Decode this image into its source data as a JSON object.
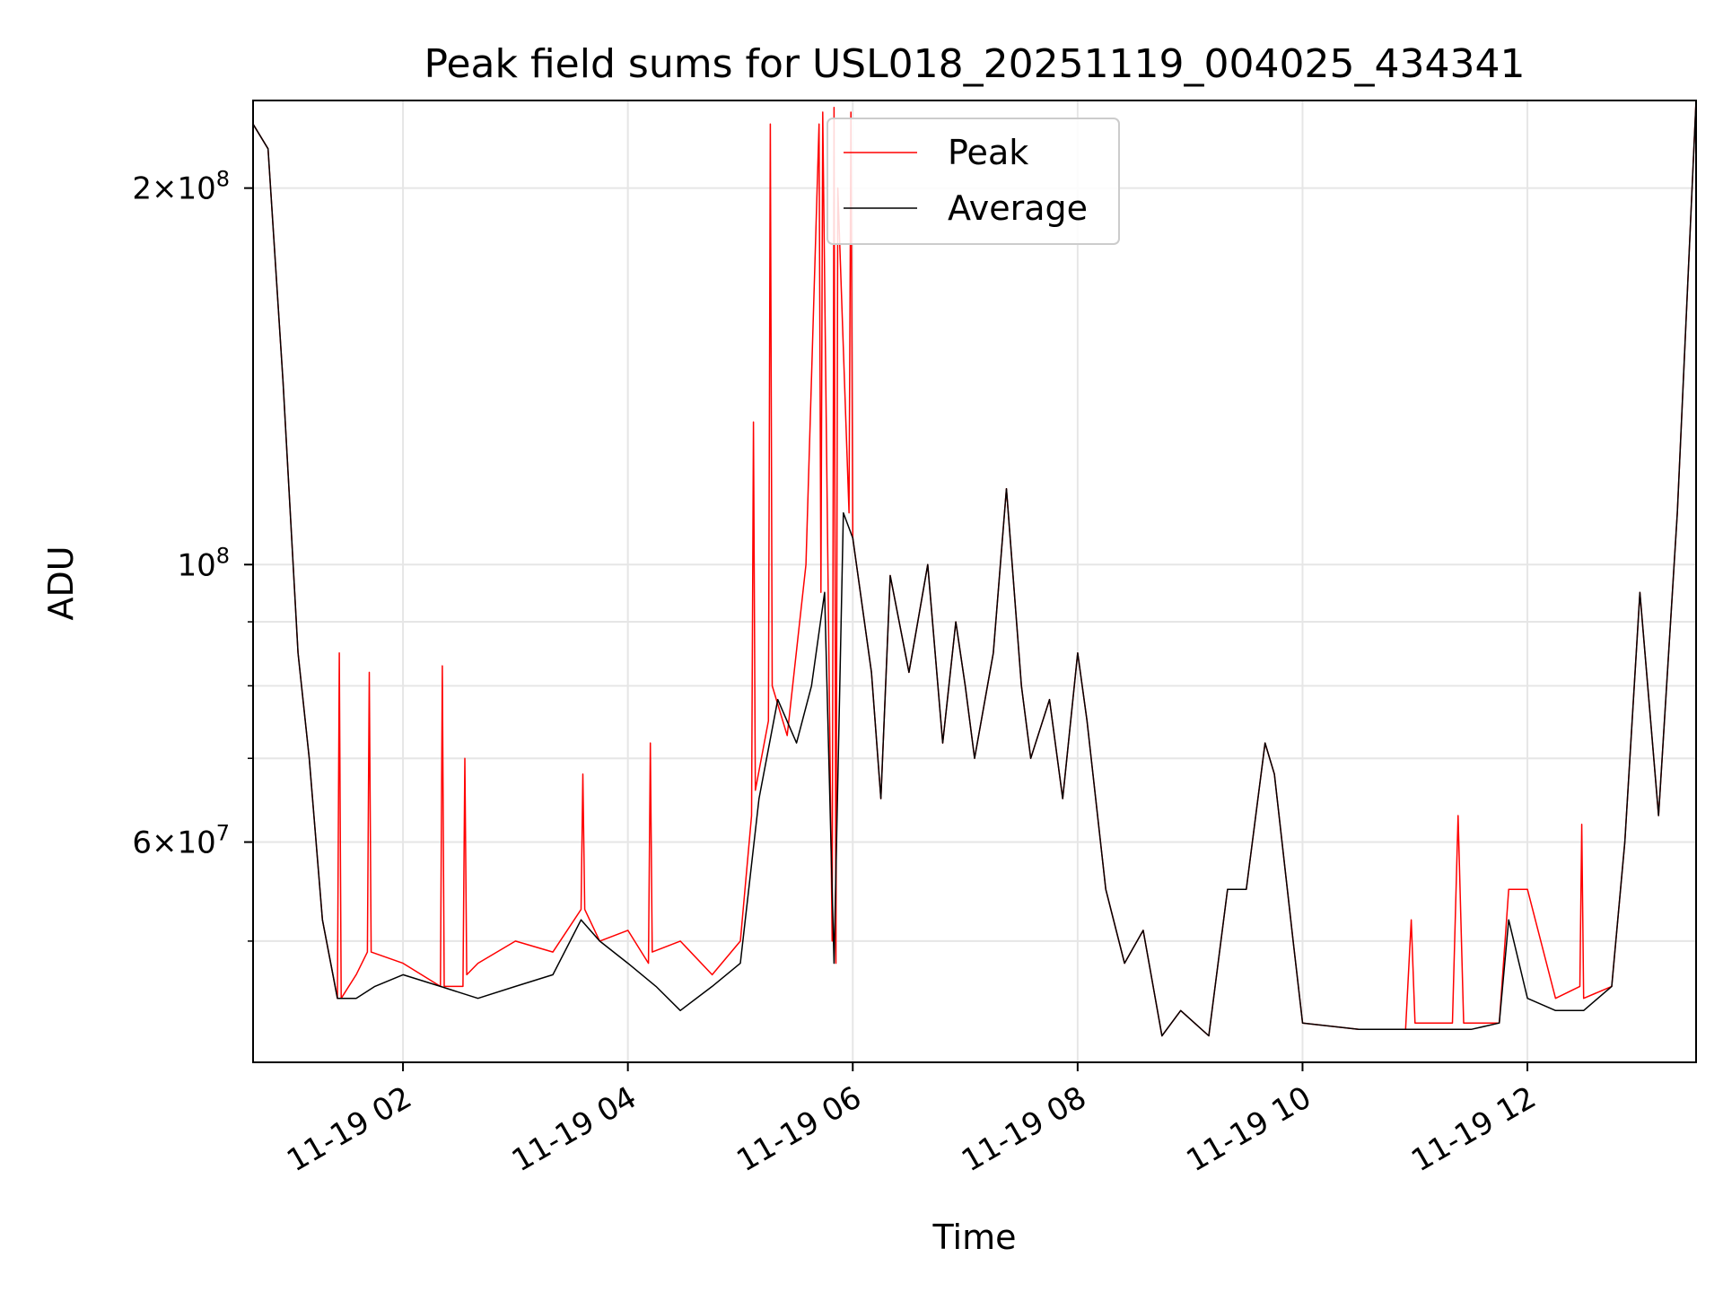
{
  "chart_data": {
    "type": "line",
    "title": "Peak field sums for USL018_20251119_004025_434341",
    "xlabel": "Time",
    "ylabel": "ADU",
    "x_axis": {
      "kind": "time",
      "range": [
        "2025-11-19 00:40",
        "2025-11-19 13:30"
      ],
      "tick_values": [
        "2025-11-19 02:00",
        "2025-11-19 04:00",
        "2025-11-19 06:00",
        "2025-11-19 08:00",
        "2025-11-19 10:00",
        "2025-11-19 12:00"
      ],
      "tick_labels": [
        "11-19 02",
        "11-19 04",
        "11-19 06",
        "11-19 08",
        "11-19 10",
        "11-19 12"
      ],
      "tick_label_rotation_deg": 30
    },
    "y_axis": {
      "scale": "log",
      "range": [
        40000000,
        235000000
      ],
      "major_ticks": [
        {
          "value": 60000000,
          "base": "6×10",
          "exp": "7"
        },
        {
          "value": 100000000,
          "base": "10",
          "exp": "8"
        },
        {
          "value": 200000000,
          "base": "2×10",
          "exp": "8"
        }
      ],
      "minor_ticks": [
        50000000,
        70000000,
        80000000,
        90000000
      ]
    },
    "grid": true,
    "legend": {
      "placement": "upper-center",
      "entries": [
        "Peak",
        "Average"
      ]
    },
    "series": [
      {
        "name": "Peak",
        "color": "#ff0000",
        "x": [
          "2025-11-19 00:40",
          "2025-11-19 00:48",
          "2025-11-19 00:56",
          "2025-11-19 01:04",
          "2025-11-19 01:10",
          "2025-11-19 01:17",
          "2025-11-19 01:25",
          "2025-11-19 01:26",
          "2025-11-19 01:27",
          "2025-11-19 01:35",
          "2025-11-19 01:41",
          "2025-11-19 01:42",
          "2025-11-19 01:43",
          "2025-11-19 02:00",
          "2025-11-19 02:20",
          "2025-11-19 02:21",
          "2025-11-19 02:22",
          "2025-11-19 02:32",
          "2025-11-19 02:33",
          "2025-11-19 02:34",
          "2025-11-19 02:40",
          "2025-11-19 03:00",
          "2025-11-19 03:20",
          "2025-11-19 03:35",
          "2025-11-19 03:36",
          "2025-11-19 03:37",
          "2025-11-19 03:45",
          "2025-11-19 04:00",
          "2025-11-19 04:11",
          "2025-11-19 04:12",
          "2025-11-19 04:13",
          "2025-11-19 04:28",
          "2025-11-19 04:45",
          "2025-11-19 05:00",
          "2025-11-19 05:06",
          "2025-11-19 05:07",
          "2025-11-19 05:08",
          "2025-11-19 05:15",
          "2025-11-19 05:16",
          "2025-11-19 05:17",
          "2025-11-19 05:25",
          "2025-11-19 05:35",
          "2025-11-19 05:42",
          "2025-11-19 05:43",
          "2025-11-19 05:44",
          "2025-11-19 05:49",
          "2025-11-19 05:50",
          "2025-11-19 05:51",
          "2025-11-19 05:52",
          "2025-11-19 05:58",
          "2025-11-19 05:59",
          "2025-11-19 06:00",
          "2025-11-19 06:10",
          "2025-11-19 06:15",
          "2025-11-19 06:20",
          "2025-11-19 06:30",
          "2025-11-19 06:40",
          "2025-11-19 06:48",
          "2025-11-19 06:55",
          "2025-11-19 07:00",
          "2025-11-19 07:05",
          "2025-11-19 07:15",
          "2025-11-19 07:22",
          "2025-11-19 07:30",
          "2025-11-19 07:35",
          "2025-11-19 07:45",
          "2025-11-19 07:52",
          "2025-11-19 08:00",
          "2025-11-19 08:05",
          "2025-11-19 08:15",
          "2025-11-19 08:25",
          "2025-11-19 08:35",
          "2025-11-19 08:45",
          "2025-11-19 08:55",
          "2025-11-19 09:10",
          "2025-11-19 09:20",
          "2025-11-19 09:30",
          "2025-11-19 09:40",
          "2025-11-19 09:45",
          "2025-11-19 09:55",
          "2025-11-19 10:00",
          "2025-11-19 10:30",
          "2025-11-19 10:55",
          "2025-11-19 10:58",
          "2025-11-19 11:00",
          "2025-11-19 11:20",
          "2025-11-19 11:23",
          "2025-11-19 11:26",
          "2025-11-19 11:45",
          "2025-11-19 11:50",
          "2025-11-19 12:00",
          "2025-11-19 12:15",
          "2025-11-19 12:28",
          "2025-11-19 12:29",
          "2025-11-19 12:30",
          "2025-11-19 12:45",
          "2025-11-19 12:52",
          "2025-11-19 13:00",
          "2025-11-19 13:10",
          "2025-11-19 13:20",
          "2025-11-19 13:30"
        ],
        "y": [
          225000000,
          215000000,
          140000000,
          85000000,
          70000000,
          52000000,
          45000000,
          85000000,
          45000000,
          47000000,
          49000000,
          82000000,
          49000000,
          48000000,
          46000000,
          83000000,
          46000000,
          46000000,
          70000000,
          47000000,
          48000000,
          50000000,
          49000000,
          53000000,
          68000000,
          53000000,
          50000000,
          51000000,
          48000000,
          72000000,
          49000000,
          50000000,
          47000000,
          50000000,
          63000000,
          130000000,
          66000000,
          75000000,
          225000000,
          80000000,
          73000000,
          100000000,
          225000000,
          95000000,
          230000000,
          50000000,
          232000000,
          48000000,
          200000000,
          110000000,
          230000000,
          105000000,
          82000000,
          65000000,
          98000000,
          82000000,
          100000000,
          72000000,
          90000000,
          80000000,
          70000000,
          85000000,
          115000000,
          80000000,
          70000000,
          78000000,
          65000000,
          85000000,
          75000000,
          55000000,
          48000000,
          51000000,
          42000000,
          44000000,
          42000000,
          55000000,
          55000000,
          72000000,
          68000000,
          50000000,
          43000000,
          42500000,
          42500000,
          52000000,
          43000000,
          43000000,
          63000000,
          43000000,
          43000000,
          55000000,
          55000000,
          45000000,
          46000000,
          62000000,
          45000000,
          46000000,
          60000000,
          95000000,
          63000000,
          110000000,
          235000000
        ]
      },
      {
        "name": "Average",
        "color": "#000000",
        "x": [
          "2025-11-19 00:40",
          "2025-11-19 00:48",
          "2025-11-19 00:56",
          "2025-11-19 01:04",
          "2025-11-19 01:10",
          "2025-11-19 01:17",
          "2025-11-19 01:25",
          "2025-11-19 01:35",
          "2025-11-19 01:45",
          "2025-11-19 02:00",
          "2025-11-19 02:20",
          "2025-11-19 02:40",
          "2025-11-19 03:00",
          "2025-11-19 03:20",
          "2025-11-19 03:35",
          "2025-11-19 03:45",
          "2025-11-19 04:00",
          "2025-11-19 04:15",
          "2025-11-19 04:28",
          "2025-11-19 04:45",
          "2025-11-19 05:00",
          "2025-11-19 05:10",
          "2025-11-19 05:20",
          "2025-11-19 05:30",
          "2025-11-19 05:38",
          "2025-11-19 05:45",
          "2025-11-19 05:50",
          "2025-11-19 05:55",
          "2025-11-19 06:00",
          "2025-11-19 06:10",
          "2025-11-19 06:15",
          "2025-11-19 06:20",
          "2025-11-19 06:30",
          "2025-11-19 06:40",
          "2025-11-19 06:48",
          "2025-11-19 06:55",
          "2025-11-19 07:00",
          "2025-11-19 07:05",
          "2025-11-19 07:15",
          "2025-11-19 07:22",
          "2025-11-19 07:30",
          "2025-11-19 07:35",
          "2025-11-19 07:45",
          "2025-11-19 07:52",
          "2025-11-19 08:00",
          "2025-11-19 08:05",
          "2025-11-19 08:15",
          "2025-11-19 08:25",
          "2025-11-19 08:35",
          "2025-11-19 08:45",
          "2025-11-19 08:55",
          "2025-11-19 09:10",
          "2025-11-19 09:20",
          "2025-11-19 09:30",
          "2025-11-19 09:40",
          "2025-11-19 09:45",
          "2025-11-19 09:55",
          "2025-11-19 10:00",
          "2025-11-19 10:30",
          "2025-11-19 11:00",
          "2025-11-19 11:30",
          "2025-11-19 11:45",
          "2025-11-19 11:50",
          "2025-11-19 12:00",
          "2025-11-19 12:15",
          "2025-11-19 12:30",
          "2025-11-19 12:45",
          "2025-11-19 12:52",
          "2025-11-19 13:00",
          "2025-11-19 13:10",
          "2025-11-19 13:20",
          "2025-11-19 13:30"
        ],
        "y": [
          225000000,
          215000000,
          140000000,
          85000000,
          70000000,
          52000000,
          45000000,
          45000000,
          46000000,
          47000000,
          46000000,
          45000000,
          46000000,
          47000000,
          52000000,
          50000000,
          48000000,
          46000000,
          44000000,
          46000000,
          48000000,
          65000000,
          78000000,
          72000000,
          80000000,
          95000000,
          48000000,
          110000000,
          105000000,
          82000000,
          65000000,
          98000000,
          82000000,
          100000000,
          72000000,
          90000000,
          80000000,
          70000000,
          85000000,
          115000000,
          80000000,
          70000000,
          78000000,
          65000000,
          85000000,
          75000000,
          55000000,
          48000000,
          51000000,
          42000000,
          44000000,
          42000000,
          55000000,
          55000000,
          72000000,
          68000000,
          50000000,
          43000000,
          42500000,
          42500000,
          42500000,
          43000000,
          52000000,
          45000000,
          44000000,
          44000000,
          46000000,
          60000000,
          95000000,
          63000000,
          110000000,
          235000000
        ]
      }
    ]
  }
}
